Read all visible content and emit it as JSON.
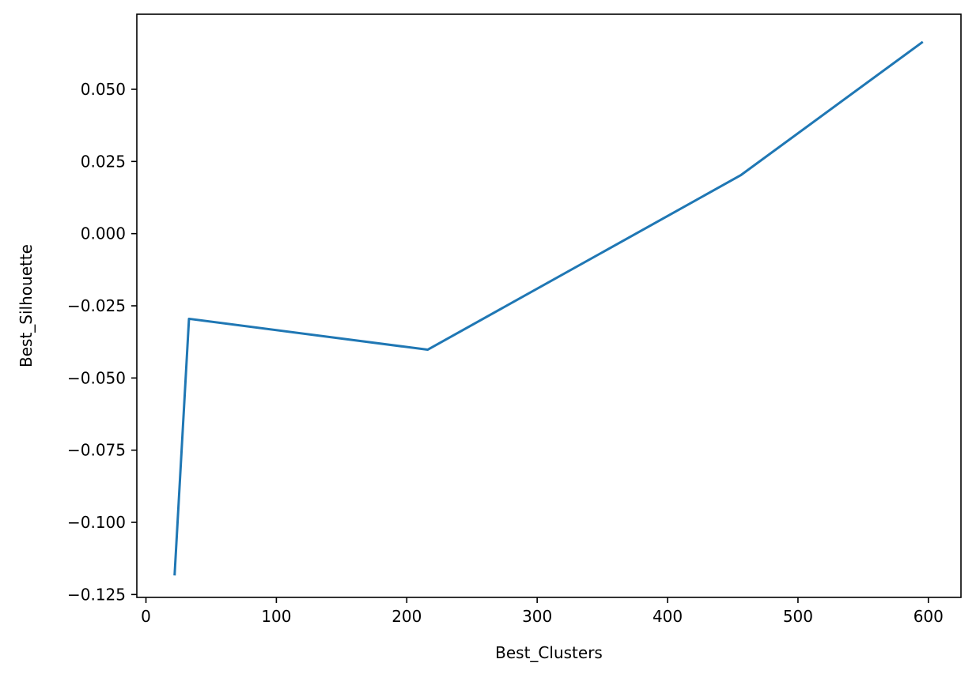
{
  "chart_data": {
    "type": "line",
    "title": "",
    "xlabel": "Best_Clusters",
    "ylabel": "Best_Silhouette",
    "xlim": [
      -7,
      625
    ],
    "ylim": [
      -0.126,
      0.076
    ],
    "xticks": [
      0,
      100,
      200,
      300,
      400,
      500,
      600
    ],
    "xtick_labels": [
      "0",
      "100",
      "200",
      "300",
      "400",
      "500",
      "600"
    ],
    "yticks": [
      -0.125,
      -0.1,
      -0.075,
      -0.05,
      -0.025,
      0.0,
      0.025,
      0.05
    ],
    "ytick_labels": [
      "−0.125",
      "−0.100",
      "−0.075",
      "−0.050",
      "−0.025",
      "0.000",
      "0.025",
      "0.050"
    ],
    "grid": false,
    "legend": "none",
    "series": [
      {
        "color": "#1f77b4",
        "x": [
          22,
          33,
          216,
          456,
          595
        ],
        "y": [
          -0.118,
          -0.0295,
          -0.0402,
          0.0202,
          0.0662
        ]
      }
    ]
  }
}
